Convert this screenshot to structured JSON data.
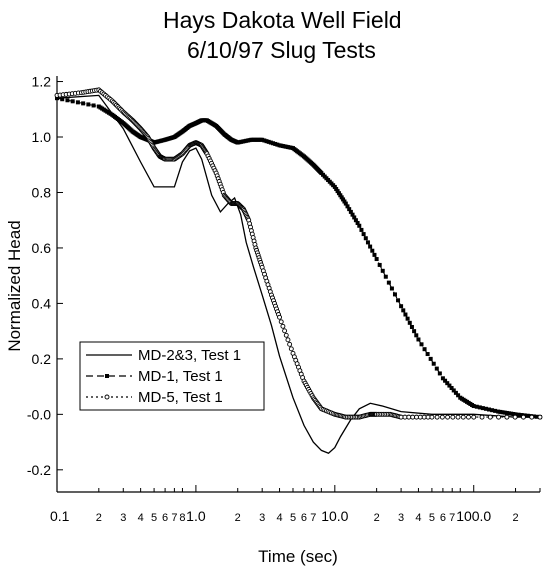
{
  "chart_data": {
    "type": "line",
    "title": [
      "Hays Dakota Well Field",
      "6/10/97 Slug Tests"
    ],
    "xlabel": "Time (sec)",
    "ylabel": "Normalized Head",
    "xscale": "log",
    "xlim": [
      0.1,
      300
    ],
    "ylim": [
      -0.28,
      1.22
    ],
    "y_ticks": [
      -0.2,
      -0.0,
      0.2,
      0.4,
      0.6,
      0.8,
      1.0,
      1.2
    ],
    "y_tick_labels": [
      "-0.2",
      "-0.0",
      "0.2",
      "0.4",
      "0.6",
      "0.8",
      "1.0",
      "1.2"
    ],
    "x_major_ticks": [
      0.1,
      1,
      10,
      100
    ],
    "x_major_labels": [
      "0.1",
      "1.0",
      "10.0",
      "100.0"
    ],
    "x_minor_ticks": [
      2,
      3,
      4,
      5,
      6,
      7,
      8
    ],
    "x_minor_labels": [
      "2",
      "3",
      "4",
      "5",
      "6",
      "7",
      "8"
    ],
    "legend_position": "lower-left",
    "grid": false,
    "series": [
      {
        "name": "MD-2&3, Test 1",
        "style": "solid",
        "marker": "none",
        "x": [
          0.1,
          0.2,
          0.3,
          0.4,
          0.5,
          0.6,
          0.7,
          0.8,
          0.9,
          1.0,
          1.1,
          1.3,
          1.5,
          1.7,
          1.9,
          2.1,
          2.3,
          2.6,
          3.0,
          3.5,
          4.0,
          5.0,
          6.0,
          7.0,
          8.0,
          9.0,
          10.0,
          11.0,
          13.0,
          15.0,
          18.0,
          22.0,
          30.0,
          50.0,
          100.0,
          200.0,
          300.0
        ],
        "y": [
          1.14,
          1.15,
          1.03,
          0.91,
          0.82,
          0.82,
          0.82,
          0.91,
          0.95,
          0.96,
          0.92,
          0.79,
          0.73,
          0.76,
          0.78,
          0.72,
          0.62,
          0.53,
          0.43,
          0.32,
          0.21,
          0.06,
          -0.04,
          -0.1,
          -0.13,
          -0.14,
          -0.12,
          -0.08,
          -0.02,
          0.02,
          0.04,
          0.03,
          0.01,
          0.0,
          0.0,
          -0.01,
          -0.01
        ]
      },
      {
        "name": "MD-1, Test 1",
        "style": "dashed",
        "marker": "square",
        "x": [
          0.1,
          0.2,
          0.25,
          0.3,
          0.35,
          0.4,
          0.45,
          0.5,
          0.6,
          0.7,
          0.8,
          0.9,
          1.0,
          1.1,
          1.2,
          1.4,
          1.6,
          1.8,
          2.0,
          2.5,
          3.0,
          4.0,
          5.0,
          6.0,
          7.0,
          8.0,
          10.0,
          12.0,
          15.0,
          20.0,
          30.0,
          40.0,
          60.0,
          80.0,
          100.0,
          150.0,
          200.0,
          300.0
        ],
        "y": [
          1.14,
          1.11,
          1.08,
          1.05,
          1.02,
          1.0,
          0.99,
          0.98,
          0.99,
          1.0,
          1.02,
          1.04,
          1.05,
          1.06,
          1.06,
          1.04,
          1.01,
          0.99,
          0.98,
          0.99,
          0.99,
          0.97,
          0.96,
          0.93,
          0.9,
          0.87,
          0.82,
          0.76,
          0.68,
          0.56,
          0.39,
          0.27,
          0.13,
          0.06,
          0.03,
          0.01,
          0.0,
          -0.01
        ]
      },
      {
        "name": "MD-5, Test 1",
        "style": "dotted",
        "marker": "circle",
        "x": [
          0.1,
          0.15,
          0.2,
          0.25,
          0.3,
          0.35,
          0.4,
          0.45,
          0.5,
          0.55,
          0.6,
          0.7,
          0.8,
          0.9,
          1.0,
          1.1,
          1.2,
          1.4,
          1.6,
          1.8,
          2.0,
          2.2,
          2.4,
          2.7,
          3.0,
          3.5,
          4.0,
          5.0,
          6.0,
          7.0,
          8.0,
          10.0,
          12.0,
          15.0,
          18.0,
          20.0,
          25.0,
          30.0,
          50.0,
          100.0,
          300.0
        ],
        "y": [
          1.15,
          1.16,
          1.17,
          1.13,
          1.09,
          1.06,
          1.03,
          1.0,
          0.96,
          0.93,
          0.92,
          0.92,
          0.94,
          0.97,
          0.98,
          0.97,
          0.94,
          0.87,
          0.79,
          0.76,
          0.76,
          0.74,
          0.7,
          0.6,
          0.53,
          0.43,
          0.35,
          0.22,
          0.12,
          0.06,
          0.02,
          0.0,
          -0.01,
          -0.01,
          0.0,
          0.0,
          0.0,
          -0.01,
          -0.01,
          -0.01,
          -0.01
        ]
      }
    ]
  }
}
